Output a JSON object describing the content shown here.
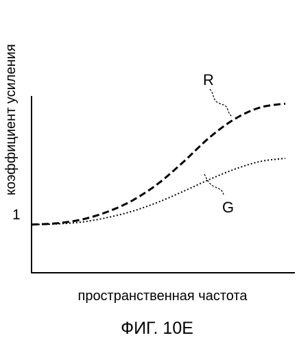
{
  "chart_data": {
    "type": "line",
    "title": "",
    "xlabel": "пространственная частота",
    "ylabel": "коэффициент усиления",
    "y_tick_labels": [
      "1"
    ],
    "grid": false,
    "legend": "none",
    "x": [
      0,
      0.1,
      0.2,
      0.3,
      0.4,
      0.5,
      0.6,
      0.7,
      0.8,
      0.9,
      1.0
    ],
    "series": [
      {
        "name": "R",
        "style": "dashed",
        "color": "#000000",
        "values": [
          1.0,
          1.02,
          1.08,
          1.2,
          1.38,
          1.64,
          1.98,
          2.35,
          2.64,
          2.82,
          2.88
        ]
      },
      {
        "name": "G",
        "style": "dotted",
        "color": "#000000",
        "values": [
          1.0,
          1.01,
          1.04,
          1.11,
          1.21,
          1.35,
          1.52,
          1.7,
          1.86,
          1.98,
          2.03
        ]
      }
    ],
    "ylim": [
      0.25,
      3.0
    ]
  },
  "caption": "ФИГ. 10E"
}
